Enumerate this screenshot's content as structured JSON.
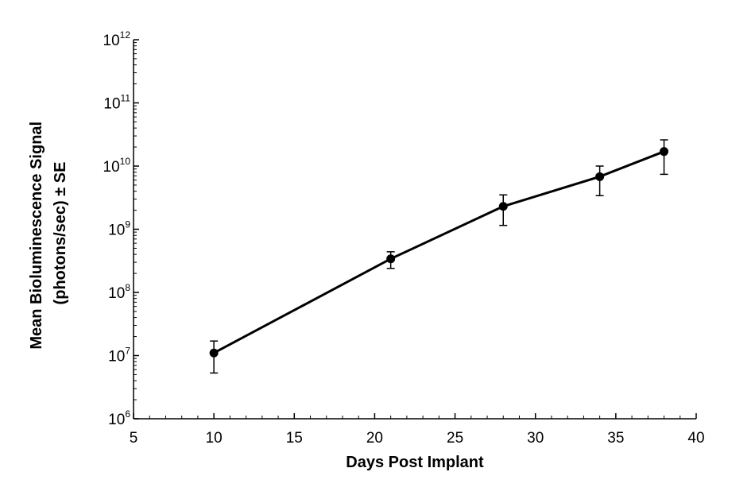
{
  "chart_data": {
    "type": "line",
    "title": "",
    "xlabel": "Days Post Implant",
    "ylabel_lines": [
      "Mean Bioluminescence Signal",
      "(photons/sec) ± SE"
    ],
    "xlim": [
      5,
      40
    ],
    "xticks": [
      5,
      10,
      15,
      20,
      25,
      30,
      35,
      40
    ],
    "ylim": [
      1000000,
      1000000000000
    ],
    "yscale": "log",
    "ytick_exponents": [
      6,
      7,
      8,
      9,
      10,
      11,
      12
    ],
    "ytick_base": "10",
    "grid": false,
    "legend": "none",
    "series": [
      {
        "x": [
          10,
          21,
          28,
          34,
          38
        ],
        "y": [
          11000000,
          340000000,
          2300000000,
          6800000000,
          17000000000
        ],
        "err_low": [
          5300000,
          240000000,
          1150000000,
          3400000000,
          7400000000
        ],
        "err_high": [
          17000000,
          440000000,
          3500000000,
          10000000000,
          26000000000
        ],
        "color": "#000000"
      }
    ]
  }
}
